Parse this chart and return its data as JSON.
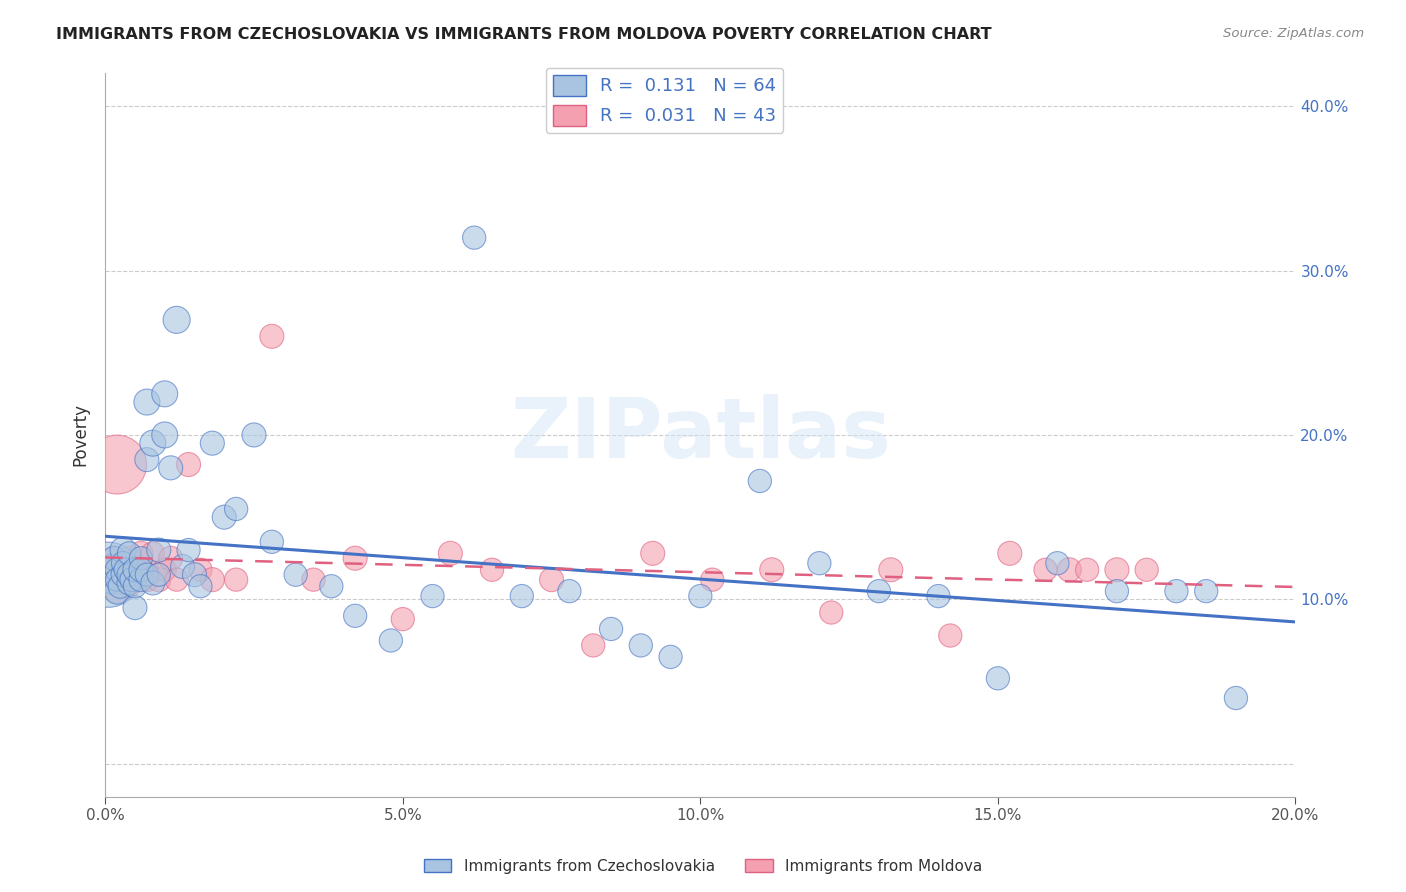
{
  "title": "IMMIGRANTS FROM CZECHOSLOVAKIA VS IMMIGRANTS FROM MOLDOVA POVERTY CORRELATION CHART",
  "source": "Source: ZipAtlas.com",
  "ylabel": "Poverty",
  "xlim": [
    0.0,
    0.2
  ],
  "ylim": [
    -0.02,
    0.42
  ],
  "xticks": [
    0.0,
    0.05,
    0.1,
    0.15,
    0.2
  ],
  "yticks": [
    0.0,
    0.1,
    0.2,
    0.3,
    0.4
  ],
  "xtick_labels": [
    "0.0%",
    "5.0%",
    "10.0%",
    "15.0%",
    "20.0%"
  ],
  "ytick_labels": [
    "",
    "10.0%",
    "20.0%",
    "30.0%",
    "40.0%"
  ],
  "color_czech": "#a8c4e0",
  "color_moldova": "#f4a0b0",
  "line_color_czech": "#4472c4",
  "line_color_moldova": "#e06080",
  "R_czech": 0.131,
  "N_czech": 64,
  "R_moldova": 0.031,
  "N_moldova": 43,
  "watermark": "ZIPatlas",
  "legend_label_czech": "Immigrants from Czechoslovakia",
  "legend_label_moldova": "Immigrants from Moldova",
  "czech_x": [
    0.0005,
    0.001,
    0.001,
    0.0015,
    0.002,
    0.002,
    0.002,
    0.0025,
    0.003,
    0.003,
    0.003,
    0.0035,
    0.004,
    0.004,
    0.004,
    0.0045,
    0.005,
    0.005,
    0.005,
    0.006,
    0.006,
    0.006,
    0.007,
    0.007,
    0.007,
    0.008,
    0.008,
    0.009,
    0.009,
    0.01,
    0.01,
    0.011,
    0.012,
    0.013,
    0.014,
    0.015,
    0.016,
    0.018,
    0.02,
    0.022,
    0.025,
    0.028,
    0.032,
    0.038,
    0.042,
    0.048,
    0.055,
    0.062,
    0.07,
    0.078,
    0.085,
    0.09,
    0.095,
    0.1,
    0.11,
    0.12,
    0.13,
    0.14,
    0.15,
    0.16,
    0.17,
    0.18,
    0.185,
    0.19
  ],
  "czech_y": [
    0.115,
    0.12,
    0.11,
    0.125,
    0.105,
    0.118,
    0.112,
    0.108,
    0.13,
    0.115,
    0.122,
    0.118,
    0.11,
    0.128,
    0.115,
    0.112,
    0.095,
    0.108,
    0.118,
    0.112,
    0.125,
    0.118,
    0.22,
    0.185,
    0.115,
    0.11,
    0.195,
    0.13,
    0.115,
    0.2,
    0.225,
    0.18,
    0.27,
    0.12,
    0.13,
    0.115,
    0.108,
    0.195,
    0.15,
    0.155,
    0.2,
    0.135,
    0.115,
    0.108,
    0.09,
    0.075,
    0.102,
    0.32,
    0.102,
    0.105,
    0.082,
    0.072,
    0.065,
    0.102,
    0.172,
    0.122,
    0.105,
    0.102,
    0.052,
    0.122,
    0.105,
    0.105,
    0.105,
    0.04
  ],
  "czech_size": [
    300,
    300,
    250,
    300,
    350,
    300,
    280,
    300,
    350,
    300,
    280,
    300,
    300,
    280,
    300,
    300,
    300,
    280,
    300,
    300,
    280,
    300,
    350,
    300,
    280,
    300,
    350,
    300,
    280,
    350,
    350,
    300,
    380,
    300,
    280,
    300,
    280,
    300,
    300,
    280,
    300,
    280,
    280,
    280,
    280,
    280,
    280,
    280,
    280,
    280,
    280,
    280,
    280,
    280,
    280,
    280,
    280,
    280,
    280,
    280,
    280,
    280,
    280,
    280
  ],
  "czech_size_special": [
    0,
    2200
  ],
  "moldova_x": [
    0.0005,
    0.001,
    0.0015,
    0.002,
    0.002,
    0.003,
    0.003,
    0.004,
    0.004,
    0.005,
    0.005,
    0.006,
    0.007,
    0.007,
    0.008,
    0.009,
    0.01,
    0.011,
    0.012,
    0.014,
    0.016,
    0.018,
    0.022,
    0.028,
    0.035,
    0.042,
    0.05,
    0.058,
    0.065,
    0.075,
    0.082,
    0.092,
    0.102,
    0.112,
    0.122,
    0.132,
    0.142,
    0.152,
    0.158,
    0.162,
    0.165,
    0.17,
    0.175
  ],
  "moldova_y": [
    0.118,
    0.112,
    0.125,
    0.105,
    0.182,
    0.118,
    0.112,
    0.125,
    0.108,
    0.118,
    0.112,
    0.128,
    0.118,
    0.112,
    0.128,
    0.112,
    0.118,
    0.125,
    0.112,
    0.182,
    0.118,
    0.112,
    0.112,
    0.26,
    0.112,
    0.125,
    0.088,
    0.128,
    0.118,
    0.112,
    0.072,
    0.128,
    0.112,
    0.118,
    0.092,
    0.118,
    0.078,
    0.128,
    0.118,
    0.118,
    0.118,
    0.118,
    0.118
  ],
  "moldova_size": [
    300,
    300,
    280,
    300,
    1800,
    300,
    280,
    300,
    280,
    300,
    280,
    300,
    280,
    300,
    280,
    300,
    280,
    300,
    280,
    300,
    280,
    300,
    280,
    300,
    280,
    300,
    280,
    300,
    280,
    300,
    280,
    300,
    280,
    300,
    280,
    300,
    280,
    300,
    280,
    300,
    280,
    300,
    280
  ]
}
